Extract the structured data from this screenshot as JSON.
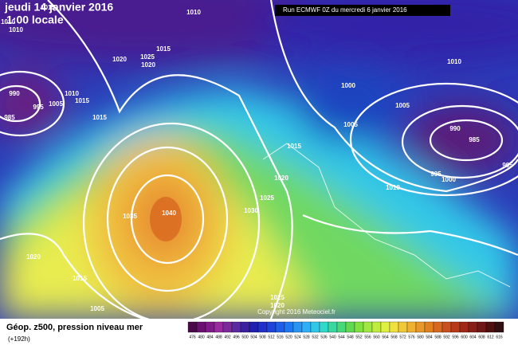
{
  "header": {
    "date": "jeudi 14 janvier 2016",
    "time": "1:00 locale",
    "run": "Run ECMWF 0Z du mercredi 6 janvier 2016"
  },
  "isobar_labels": [
    "1010",
    "1020",
    "1025",
    "1015",
    "1020",
    "990",
    "995",
    "985",
    "1010",
    "1015",
    "1005",
    "1015",
    "1010",
    "1000",
    "1005",
    "1005",
    "990",
    "985",
    "995",
    "995",
    "1000",
    "1015",
    "1020",
    "1010",
    "1025",
    "1030",
    "1040",
    "1035",
    "1020",
    "1015",
    "1005",
    "1025",
    "1020",
    "1015",
    "1010",
    "1010"
  ],
  "copyright": "Copyright 2016 Meteociel.fr",
  "footer": {
    "title": "Géop. z500, pression niveau mer",
    "lead": "(+192h)"
  },
  "legend": {
    "ticks": [
      "476",
      "480",
      "484",
      "488",
      "492",
      "496",
      "500",
      "504",
      "508",
      "512",
      "516",
      "520",
      "524",
      "528",
      "532",
      "536",
      "540",
      "544",
      "548",
      "552",
      "556",
      "560",
      "564",
      "568",
      "572",
      "576",
      "580",
      "584",
      "588",
      "592",
      "596",
      "600",
      "604",
      "608",
      "612",
      "616"
    ],
    "colors": [
      "#4a0a4a",
      "#6a1070",
      "#801a88",
      "#9a2aa0",
      "#7a2a9a",
      "#5a2aa0",
      "#3a20a0",
      "#2020b0",
      "#2030c8",
      "#1e44d8",
      "#1e5ee8",
      "#2078f0",
      "#2894f4",
      "#30b0f4",
      "#30c8e8",
      "#30d8c8",
      "#38d8a0",
      "#48d878",
      "#60d850",
      "#80e040",
      "#a0e840",
      "#c0ec40",
      "#e0f040",
      "#f0e040",
      "#f0c838",
      "#f0b030",
      "#e89828",
      "#e08020",
      "#d86820",
      "#c85020",
      "#b83818",
      "#a02818",
      "#882018",
      "#701818",
      "#501010",
      "#301010"
    ]
  }
}
